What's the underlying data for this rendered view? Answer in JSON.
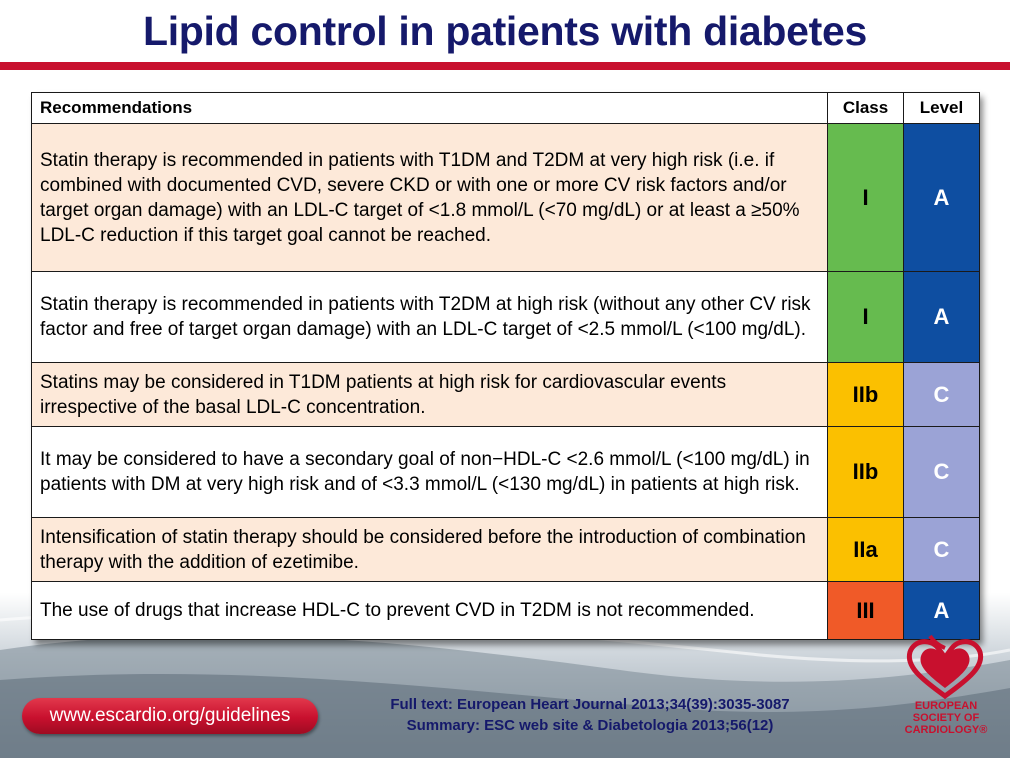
{
  "title": "Lipid control in patients with diabetes",
  "table": {
    "headers": {
      "recommendations": "Recommendations",
      "class": "Class",
      "level": "Level"
    },
    "rows": [
      {
        "text": "Statin therapy is recommended in patients with T1DM and T2DM at very high risk (i.e. if combined with documented CVD, severe CKD or with one or more CV risk factors and/or target organ damage) with an LDL-C target of <1.8 mmol/L (<70 mg/dL) or at least a ≥50% LDL-C reduction if this target goal cannot be reached.",
        "class": "I",
        "level": "A"
      },
      {
        "text": "Statin therapy is recommended in patients with T2DM at high risk (without any other CV risk factor and free of target organ damage) with an LDL-C target of <2.5 mmol/L (<100 mg/dL).",
        "class": "I",
        "level": "A"
      },
      {
        "text": "Statins may be considered in T1DM patients at high risk for cardiovascular events irrespective of the basal LDL-C concentration.",
        "class": "IIb",
        "level": "C"
      },
      {
        "text": "It may be considered to have a secondary goal of non−HDL-C <2.6 mmol/L (<100 mg/dL) in patients with DM at very high risk and of <3.3 mmol/L (<130 mg/dL) in patients at high risk.",
        "class": "IIb",
        "level": "C"
      },
      {
        "text": "Intensification of statin therapy should be considered before the introduction of combination therapy with the addition of ezetimibe.",
        "class": "IIa",
        "level": "C"
      },
      {
        "text": "The use of drugs that increase HDL-C to prevent CVD in T2DM is not recommended.",
        "class": "III",
        "level": "A"
      }
    ]
  },
  "footer": {
    "url": "www.escardio.org/guidelines",
    "ref_line1": "Full text: European Heart Journal 2013;34(39):3035-3087",
    "ref_line2": "Summary: ESC web site & Diabetologia 2013;56(12)",
    "logo_line1": "EUROPEAN",
    "logo_line2": "SOCIETY OF",
    "logo_line3": "CARDIOLOGY®"
  },
  "colors": {
    "title": "#15196b",
    "accent_red": "#c8102e",
    "class_I": "#66bb4f",
    "class_II": "#fbc000",
    "class_III": "#f05a28",
    "level_A": "#0e4ea1",
    "level_C": "#9ba3d6",
    "row_shade": "#fde9d9"
  }
}
